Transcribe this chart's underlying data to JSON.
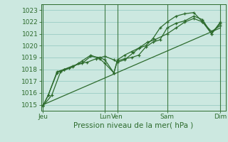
{
  "background_color": "#cce8e0",
  "grid_color": "#99ccc4",
  "line_color": "#2d6b2d",
  "title": "Pression niveau de la mer( hPa )",
  "ytick_fontsize": 6.5,
  "xtick_fontsize": 6.5,
  "title_fontsize": 7.5,
  "ylim": [
    1014.5,
    1023.5
  ],
  "yticks": [
    1015,
    1016,
    1017,
    1018,
    1019,
    1020,
    1021,
    1022,
    1023
  ],
  "x_ticks_pos": [
    0.0,
    3.5,
    4.2,
    7.0,
    10.0
  ],
  "x_ticks_labels": [
    "Jeu",
    "Lun",
    "Ven",
    "Sam",
    "Dim"
  ],
  "vlines": [
    0.0,
    3.5,
    4.2,
    7.0,
    10.0
  ],
  "trend": {
    "x": [
      0.0,
      10.0
    ],
    "y": [
      1015.0,
      1021.5
    ]
  },
  "series1": {
    "x": [
      0.0,
      0.3,
      0.8,
      1.2,
      1.7,
      2.2,
      2.7,
      3.2,
      3.5,
      4.0,
      4.2,
      4.6,
      5.0,
      5.4,
      5.8,
      6.2,
      6.6,
      7.0,
      7.5,
      8.0,
      8.5,
      9.0,
      9.5,
      10.0
    ],
    "y": [
      1014.9,
      1015.8,
      1017.7,
      1018.0,
      1018.3,
      1018.5,
      1019.1,
      1019.0,
      1018.8,
      1017.7,
      1018.7,
      1018.9,
      1019.0,
      1019.2,
      1019.9,
      1020.3,
      1020.5,
      1021.5,
      1021.9,
      1022.1,
      1022.5,
      1022.2,
      1021.0,
      1021.9
    ]
  },
  "series2": {
    "x": [
      0.0,
      0.3,
      0.8,
      1.2,
      1.7,
      2.2,
      2.7,
      3.2,
      3.5,
      4.0,
      4.2,
      4.6,
      5.0,
      5.4,
      5.8,
      6.2,
      6.6,
      7.0,
      7.5,
      8.0,
      8.5,
      9.0,
      9.5,
      10.0
    ],
    "y": [
      1014.9,
      1015.8,
      1017.8,
      1018.0,
      1018.2,
      1018.7,
      1019.2,
      1018.9,
      1018.5,
      1017.7,
      1018.8,
      1019.2,
      1019.5,
      1019.8,
      1020.0,
      1020.6,
      1021.5,
      1022.0,
      1022.5,
      1022.7,
      1022.8,
      1022.0,
      1021.2,
      1021.7
    ]
  },
  "series3": {
    "x": [
      0.0,
      0.5,
      1.0,
      1.5,
      2.0,
      2.5,
      3.0,
      3.5,
      4.0,
      4.2,
      4.6,
      5.1,
      5.5,
      5.9,
      6.3,
      7.0,
      7.5,
      8.0,
      8.5,
      9.0,
      9.5,
      10.0
    ],
    "y": [
      1014.9,
      1015.8,
      1017.8,
      1018.1,
      1018.5,
      1018.6,
      1018.9,
      1019.1,
      1018.8,
      1018.6,
      1018.8,
      1019.4,
      1019.9,
      1020.3,
      1020.5,
      1021.0,
      1021.5,
      1022.0,
      1022.3,
      1022.0,
      1021.0,
      1022.0
    ]
  }
}
